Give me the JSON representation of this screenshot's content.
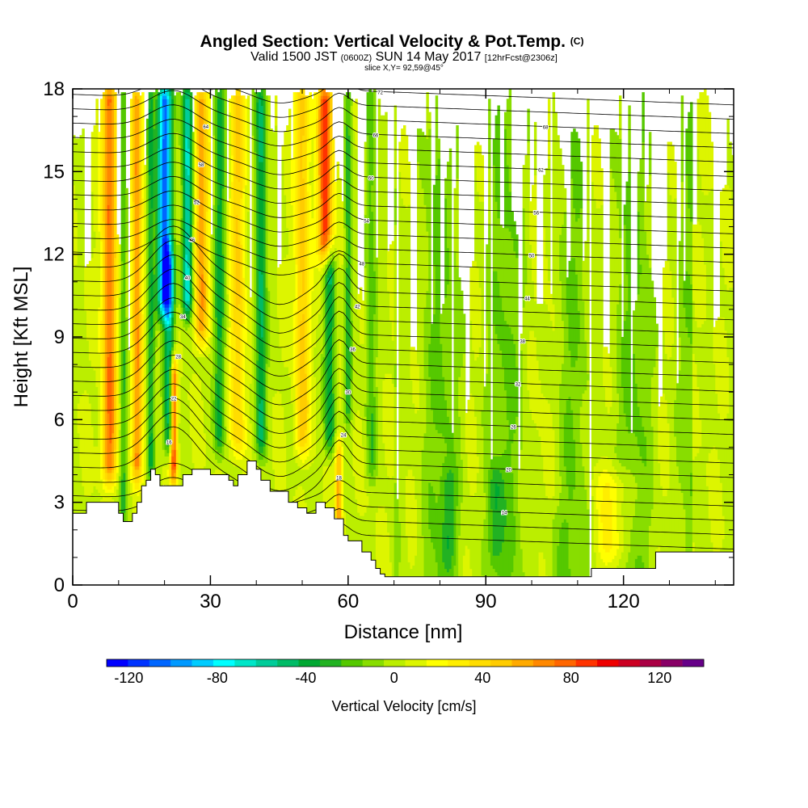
{
  "chart_data": {
    "type": "heatmap",
    "title": "Angled Section: Vertical Velocity & Pot.Temp.",
    "title_unit": "(C)",
    "subtitle": {
      "lead": "Valid 1500 JST",
      "utc": "(0600Z)",
      "date": "SUN 14 May 2017",
      "forecast": "[12hrFcst@2306z]"
    },
    "slice_label": "slice X,Y= 92,59@45°",
    "xlabel": "Distance [nm]",
    "ylabel": "Height [Kft MSL]",
    "xlim": [
      0,
      144
    ],
    "ylim": [
      0,
      18
    ],
    "x_ticks": [
      "0",
      "30",
      "60",
      "90",
      "120"
    ],
    "x_tick_values": [
      0,
      30,
      60,
      90,
      120
    ],
    "y_ticks": [
      "0",
      "3",
      "6",
      "9",
      "12",
      "15",
      "18"
    ],
    "y_tick_values": [
      0,
      3,
      6,
      9,
      12,
      15,
      18
    ],
    "colorbar": {
      "label": "Vertical Velocity [cm/s]",
      "ticks": [
        "-120",
        "-80",
        "-40",
        "0",
        "40",
        "80",
        "120"
      ],
      "tick_values": [
        -120,
        -80,
        -40,
        0,
        40,
        80,
        120
      ],
      "range": [
        -130,
        140
      ],
      "colors": [
        "#0000ff",
        "#0033ff",
        "#0066ff",
        "#0099ff",
        "#00ccff",
        "#00ffff",
        "#00e6c8",
        "#00cc99",
        "#00bb66",
        "#00a832",
        "#22b222",
        "#55c800",
        "#88dd00",
        "#bbee00",
        "#ddf500",
        "#ffff00",
        "#ffee00",
        "#ffdd00",
        "#ffcc00",
        "#ffaa00",
        "#ff8800",
        "#ff6600",
        "#ff3300",
        "#ee0000",
        "#cc0022",
        "#aa0044",
        "#880066",
        "#660088"
      ]
    },
    "terrain_profile": {
      "x": [
        0,
        3,
        3,
        10,
        10,
        11,
        11,
        13,
        13,
        14,
        14,
        15,
        15,
        16,
        16,
        17,
        17,
        18,
        18,
        19,
        19,
        24,
        24,
        26,
        26,
        30,
        30,
        34,
        34,
        35,
        35,
        36,
        36,
        38,
        38,
        40,
        40,
        41,
        41,
        43,
        43,
        47,
        47,
        49,
        49,
        51,
        51,
        53,
        53,
        55,
        55,
        57,
        57,
        59,
        59,
        60,
        60,
        63,
        63,
        65,
        65,
        66,
        66,
        67,
        67,
        68,
        68,
        113,
        113,
        127,
        127,
        144
      ],
      "y": [
        2.6,
        2.6,
        3.0,
        3.0,
        2.6,
        2.6,
        2.3,
        2.3,
        2.6,
        2.6,
        3.0,
        3.0,
        3.6,
        3.6,
        3.8,
        3.8,
        4.2,
        4.2,
        4.0,
        4.0,
        3.6,
        3.6,
        4.0,
        4.0,
        4.2,
        4.2,
        4.0,
        4.0,
        3.8,
        3.8,
        3.6,
        3.6,
        4.0,
        4.0,
        4.5,
        4.5,
        4.2,
        4.2,
        3.8,
        3.8,
        3.4,
        3.4,
        3.0,
        3.0,
        2.8,
        2.8,
        2.6,
        2.6,
        3.0,
        3.0,
        2.8,
        2.8,
        2.4,
        2.4,
        1.8,
        1.8,
        1.6,
        1.6,
        1.2,
        1.2,
        0.9,
        0.9,
        0.6,
        0.6,
        0.4,
        0.4,
        0.3,
        0.3,
        0.6,
        0.6,
        1.2,
        1.2
      ]
    },
    "velocity_features": [
      {
        "x": 8,
        "width": 4,
        "value": 70,
        "y_from": 4,
        "y_to": 18
      },
      {
        "x": 11,
        "width": 2,
        "value": -30,
        "y_from": 2.5,
        "y_to": 18
      },
      {
        "x": 14,
        "width": 3,
        "value": 60,
        "y_from": 4,
        "y_to": 18
      },
      {
        "x": 17,
        "width": 2,
        "value": -40,
        "y_from": 4,
        "y_to": 18
      },
      {
        "x": 20,
        "width": 4,
        "value": -110,
        "y_from": 10,
        "y_to": 18
      },
      {
        "x": 21,
        "width": 3,
        "value": -60,
        "y_from": 5,
        "y_to": 12
      },
      {
        "x": 22,
        "width": 2,
        "value": 90,
        "y_from": 4,
        "y_to": 8
      },
      {
        "x": 25,
        "width": 3,
        "value": -70,
        "y_from": 10,
        "y_to": 18
      },
      {
        "x": 28,
        "width": 4,
        "value": 55,
        "y_from": 9,
        "y_to": 18
      },
      {
        "x": 32,
        "width": 3,
        "value": -40,
        "y_from": 5,
        "y_to": 18
      },
      {
        "x": 36,
        "width": 4,
        "value": 40,
        "y_from": 5,
        "y_to": 18
      },
      {
        "x": 41,
        "width": 3,
        "value": -50,
        "y_from": 5,
        "y_to": 18
      },
      {
        "x": 50,
        "width": 4,
        "value": 45,
        "y_from": 5,
        "y_to": 18
      },
      {
        "x": 55,
        "width": 4,
        "value": 85,
        "y_from": 12,
        "y_to": 18
      },
      {
        "x": 56,
        "width": 3,
        "value": -45,
        "y_from": 5,
        "y_to": 12
      },
      {
        "x": 58,
        "width": 2,
        "value": 55,
        "y_from": 2,
        "y_to": 5
      },
      {
        "x": 60,
        "width": 2,
        "value": -35,
        "y_from": 6,
        "y_to": 18
      },
      {
        "x": 65,
        "width": 3,
        "value": -25,
        "y_from": 4,
        "y_to": 18
      },
      {
        "x": 82,
        "width": 4,
        "value": -20,
        "y_from": 1,
        "y_to": 4
      },
      {
        "x": 92,
        "width": 4,
        "value": -25,
        "y_from": 1,
        "y_to": 4
      },
      {
        "x": 105,
        "width": 8,
        "value": 8,
        "y_from": 3,
        "y_to": 18
      },
      {
        "x": 118,
        "width": 10,
        "value": 25,
        "y_from": 1,
        "y_to": 4
      }
    ],
    "isentropes": {
      "count": 32,
      "labels": [
        "10",
        "12",
        "14",
        "16",
        "18",
        "20",
        "22",
        "24",
        "26",
        "28",
        "30",
        "32",
        "34",
        "36",
        "38",
        "40",
        "42",
        "44",
        "46",
        "48",
        "50",
        "52",
        "54",
        "56",
        "58",
        "60",
        "62",
        "64",
        "66",
        "68",
        "70",
        "72"
      ]
    }
  }
}
